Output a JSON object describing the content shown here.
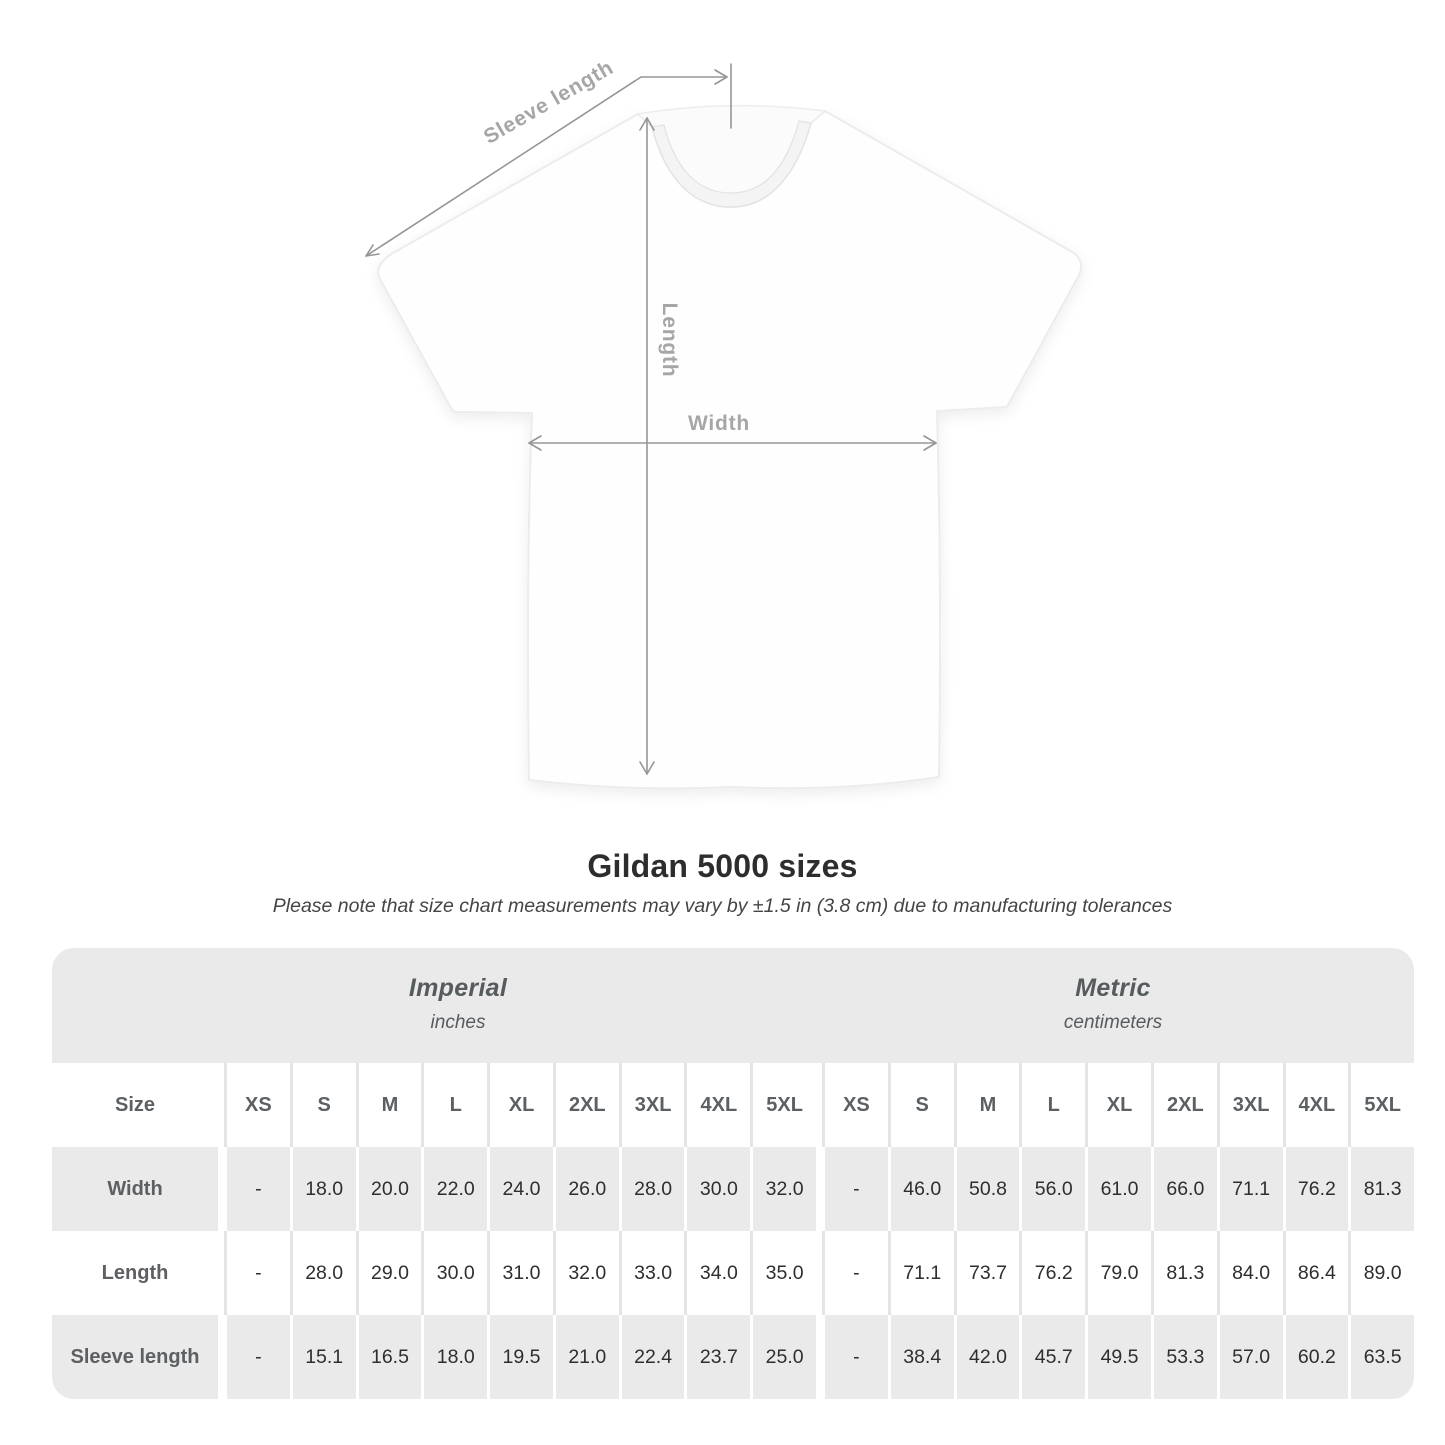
{
  "page": {
    "title": "Gildan 5000 sizes",
    "subtitle": "Please note that size chart measurements may vary by ±1.5 in (3.8 cm) due to manufacturing tolerances"
  },
  "diagram": {
    "labels": {
      "sleeve_length": "Sleeve length",
      "length": "Length",
      "width": "Width"
    },
    "line_color": "#949698",
    "label_color": "#a6a6a6"
  },
  "table": {
    "size_header": "Size",
    "groups": [
      {
        "label": "Imperial",
        "unit": "inches"
      },
      {
        "label": "Metric",
        "unit": "centimeters"
      }
    ],
    "sizes": [
      "XS",
      "S",
      "M",
      "L",
      "XL",
      "2XL",
      "3XL",
      "4XL",
      "5XL"
    ],
    "rows": [
      {
        "label": "Width",
        "imperial": [
          "-",
          "18.0",
          "20.0",
          "22.0",
          "24.0",
          "26.0",
          "28.0",
          "30.0",
          "32.0"
        ],
        "metric": [
          "-",
          "46.0",
          "50.8",
          "56.0",
          "61.0",
          "66.0",
          "71.1",
          "76.2",
          "81.3"
        ]
      },
      {
        "label": "Length",
        "imperial": [
          "-",
          "28.0",
          "29.0",
          "30.0",
          "31.0",
          "32.0",
          "33.0",
          "34.0",
          "35.0"
        ],
        "metric": [
          "-",
          "71.1",
          "73.7",
          "76.2",
          "79.0",
          "81.3",
          "84.0",
          "86.4",
          "89.0"
        ]
      },
      {
        "label": "Sleeve length",
        "imperial": [
          "-",
          "15.1",
          "16.5",
          "18.0",
          "19.5",
          "21.0",
          "22.4",
          "23.7",
          "25.0"
        ],
        "metric": [
          "-",
          "38.4",
          "42.0",
          "45.7",
          "49.5",
          "53.3",
          "57.0",
          "60.2",
          "63.5"
        ]
      }
    ],
    "stripe_color": "#eaeaea"
  },
  "chart_data": {
    "type": "table",
    "title": "Gildan 5000 sizes",
    "note": "Please note that size chart measurements may vary by ±1.5 in (3.8 cm) due to manufacturing tolerances",
    "column_groups": [
      "Imperial (inches)",
      "Metric (centimeters)"
    ],
    "columns": [
      "XS",
      "S",
      "M",
      "L",
      "XL",
      "2XL",
      "3XL",
      "4XL",
      "5XL"
    ],
    "rows": [
      {
        "measure": "Width",
        "imperial_in": [
          null,
          18.0,
          20.0,
          22.0,
          24.0,
          26.0,
          28.0,
          30.0,
          32.0
        ],
        "metric_cm": [
          null,
          46.0,
          50.8,
          56.0,
          61.0,
          66.0,
          71.1,
          76.2,
          81.3
        ]
      },
      {
        "measure": "Length",
        "imperial_in": [
          null,
          28.0,
          29.0,
          30.0,
          31.0,
          32.0,
          33.0,
          34.0,
          35.0
        ],
        "metric_cm": [
          null,
          71.1,
          73.7,
          76.2,
          79.0,
          81.3,
          84.0,
          86.4,
          89.0
        ]
      },
      {
        "measure": "Sleeve length",
        "imperial_in": [
          null,
          15.1,
          16.5,
          18.0,
          19.5,
          21.0,
          22.4,
          23.7,
          25.0
        ],
        "metric_cm": [
          null,
          38.4,
          42.0,
          45.7,
          49.5,
          53.3,
          57.0,
          60.2,
          63.5
        ]
      }
    ]
  }
}
